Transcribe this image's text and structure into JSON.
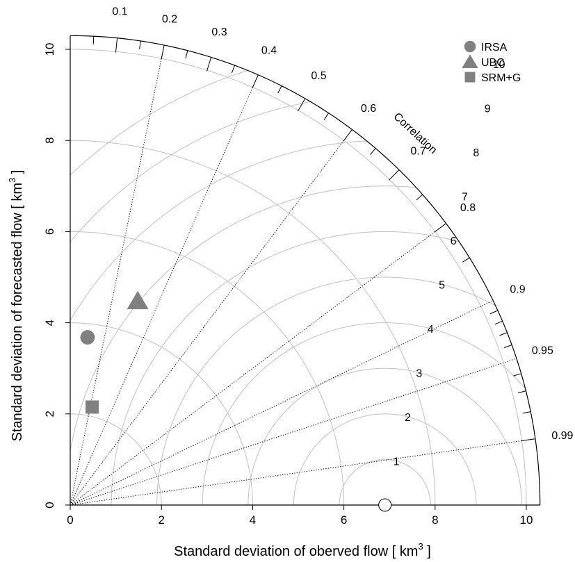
{
  "chart_data": {
    "type": "scatter",
    "subtype": "taylor-diagram",
    "title": "",
    "xlabel": {
      "main": "Standard deviation of oberved flow [ km",
      "sup": "3",
      "end": " ]"
    },
    "ylabel": {
      "main": "Standard deviation of forecasted flow [ km",
      "sup": "3",
      "end": " ]"
    },
    "xlim": [
      0,
      10.3
    ],
    "ylim": [
      0,
      10.3
    ],
    "xticks": [
      "0",
      "2",
      "4",
      "6",
      "8",
      "10"
    ],
    "yticks": [
      "0",
      "2",
      "4",
      "6",
      "8",
      "10"
    ],
    "sd_max": 10.3,
    "observed_sd": 6.9,
    "correlation_title": "Correlation",
    "correlation_labels": [
      "0.1",
      "0.2",
      "0.3",
      "0.4",
      "0.5",
      "0.6",
      "0.7",
      "0.8",
      "0.9",
      "0.95",
      "0.99"
    ],
    "correlation_lines": [
      0.2,
      0.4,
      0.6,
      0.8,
      0.9,
      0.95,
      0.99
    ],
    "rms_contours": [
      "1",
      "2",
      "3",
      "4",
      "5",
      "6",
      "7",
      "8",
      "9",
      "10"
    ],
    "sd_arcs": [
      2,
      4,
      6,
      8,
      10
    ],
    "series": [
      {
        "name": "IRSA",
        "marker": "circle",
        "x": 0.38,
        "y": 3.68
      },
      {
        "name": "UBC",
        "marker": "triangle",
        "x": 1.48,
        "y": 4.48
      },
      {
        "name": "SRM+G",
        "marker": "square",
        "x": 0.48,
        "y": 2.15
      }
    ],
    "legend_position": "top-right",
    "colors": {
      "points": "#808080",
      "grid": "#c0c0c0",
      "axis": "#000000"
    }
  }
}
